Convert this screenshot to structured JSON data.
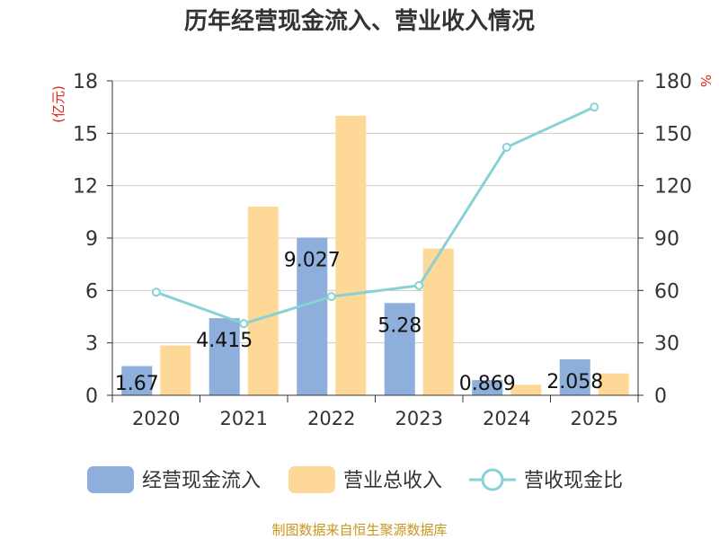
{
  "chart_data": {
    "type": "bar",
    "title": "历年经营现金流入、营业收入情况",
    "categories": [
      "2020",
      "2021",
      "2022",
      "2023",
      "2024",
      "2025"
    ],
    "series": [
      {
        "name": "经营现金流入",
        "type": "bar",
        "axis": "left",
        "color": "#8eaedb",
        "values": [
          1.67,
          4.415,
          9.027,
          5.28,
          0.869,
          2.058
        ],
        "labels": [
          "1.67",
          "4.415",
          "9.027",
          "5.28",
          "0.869",
          "2.058"
        ]
      },
      {
        "name": "营业总收入",
        "type": "bar",
        "axis": "left",
        "color": "#fdd896",
        "values": [
          2.85,
          10.8,
          16.0,
          8.4,
          0.6,
          1.25
        ]
      },
      {
        "name": "营收现金比",
        "type": "line",
        "axis": "right",
        "color": "#86d2d6",
        "values": [
          59.0,
          41.0,
          56.5,
          62.8,
          142.0,
          165.0
        ]
      }
    ],
    "y_left": {
      "unit": "(亿元)",
      "min": 0,
      "max": 18,
      "ticks": [
        "0",
        "3",
        "6",
        "9",
        "12",
        "15",
        "18"
      ]
    },
    "y_right": {
      "unit": "%",
      "min": 0,
      "max": 180,
      "ticks": [
        "0",
        "30",
        "60",
        "90",
        "120",
        "150",
        "180"
      ]
    },
    "grid": true,
    "legend": "bottom"
  },
  "source": "制图数据来自恒生聚源数据库"
}
